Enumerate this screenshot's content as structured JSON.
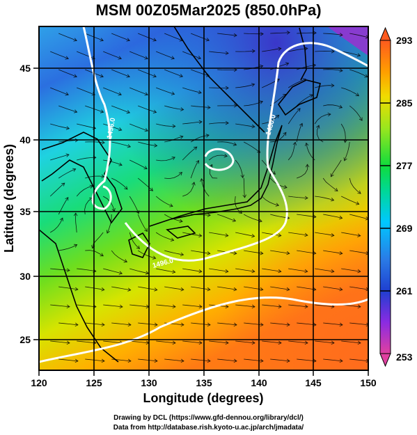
{
  "title": "MSM 00Z05Mar2025 (850.0hPa)",
  "map": {
    "xlabel": "Longitude (degrees)",
    "ylabel": "Latitude  (degrees)",
    "lon_ticks": [
      "120",
      "125",
      "130",
      "135",
      "140",
      "145",
      "150"
    ],
    "lat_ticks": [
      "25",
      "30",
      "35",
      "40",
      "45"
    ],
    "lon_range": [
      120,
      150
    ],
    "lat_range": [
      22.4,
      47.6
    ],
    "contour_labels": [
      "1496.0",
      "1480.0",
      "1496.0"
    ],
    "fill_variable": "temperature (K)",
    "contour_variable": "geopotential height (m)",
    "vectors": "streamlines"
  },
  "colorbar": {
    "ticks": [
      "293",
      "285",
      "277",
      "269",
      "261",
      "253"
    ],
    "min": 253,
    "max": 293,
    "colors": [
      "#e040a0",
      "#8a2be2",
      "#1f3fd0",
      "#2a7be6",
      "#00c8ff",
      "#00d896",
      "#10dc3c",
      "#9ae61e",
      "#f0dc00",
      "#ff9e00",
      "#ff5a1e"
    ]
  },
  "credits": {
    "line1": "Drawing by DCL (https://www.gfd-dennou.org/library/dcl/)",
    "line2": "Data from http://database.rish.kyoto-u.ac.jp/arch/jmadata/"
  }
}
